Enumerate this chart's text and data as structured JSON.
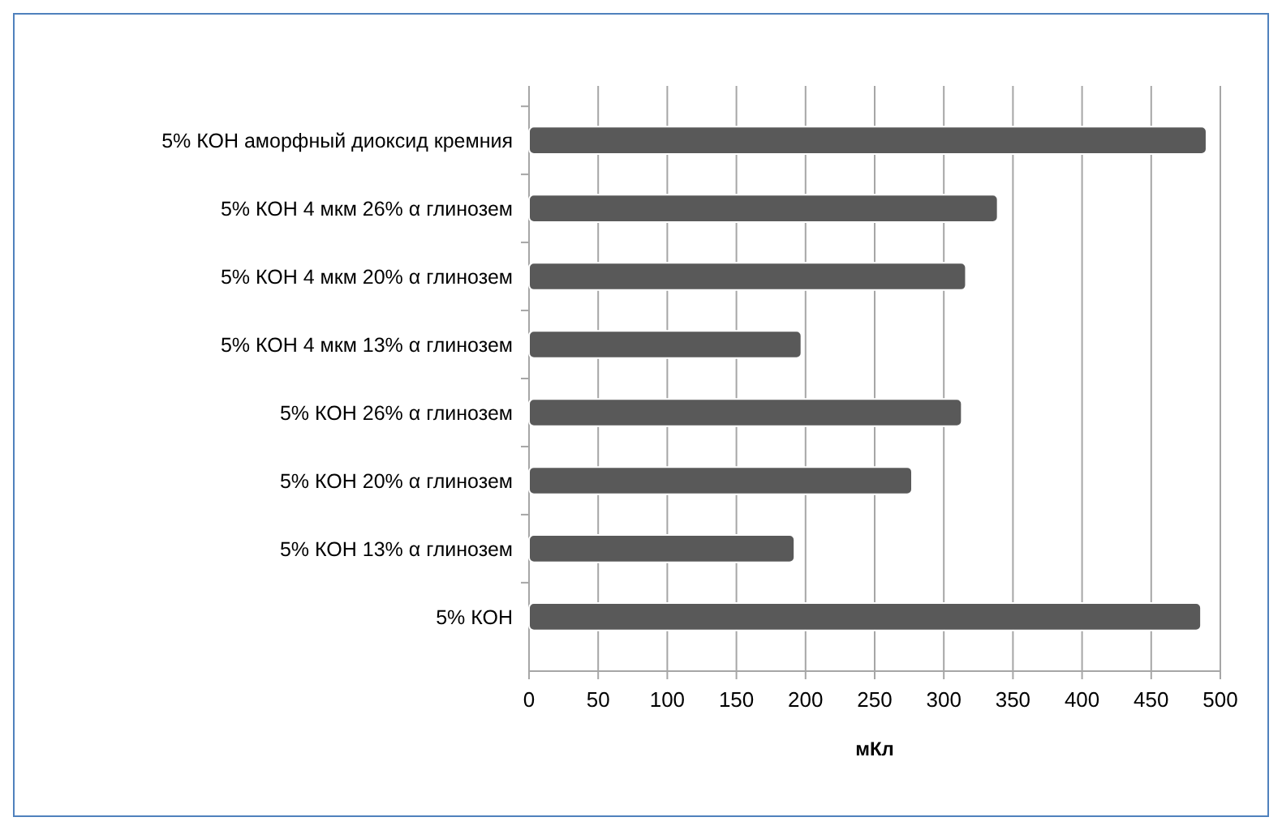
{
  "chart_data": {
    "type": "bar",
    "orientation": "horizontal",
    "xlabel": "мКл",
    "categories": [
      "5% КОН аморфный диоксид кремния",
      "5% КОН 4 мкм 26% α глинозем",
      "5% КОН 4 мкм 20% α глинозем",
      "5% КОН 4 мкм 13% α глинозем",
      "5% КОН 26% α глинозем",
      "5% КОН 20% α глинозем",
      "5% КОН 13% α глинозем",
      "5% КОН"
    ],
    "values": [
      490,
      339,
      316,
      197,
      313,
      277,
      192,
      486
    ],
    "color": "#595959",
    "xlim": [
      0,
      500
    ],
    "xticks": [
      0,
      50,
      100,
      150,
      200,
      250,
      300,
      350,
      400,
      450,
      500
    ],
    "grid": "x"
  }
}
